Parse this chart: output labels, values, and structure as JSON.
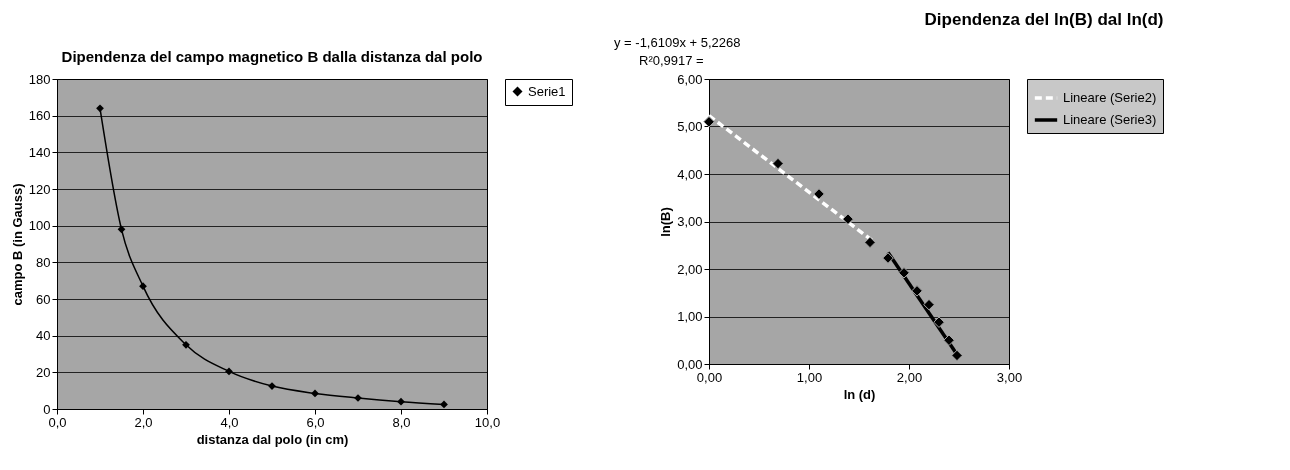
{
  "chart_data": [
    {
      "type": "line",
      "title": "Dipendenza del campo magnetico B dalla distanza dal polo",
      "xlabel": "distanza dal polo (in cm)",
      "ylabel": "campo B (in Gauss)",
      "x": [
        1,
        1.5,
        2,
        3,
        4,
        5,
        6,
        7,
        8,
        9
      ],
      "series": [
        {
          "name": "Serie1",
          "color": "#000000",
          "values": [
            164,
            98,
            67,
            35,
            20.5,
            12.5,
            8.5,
            6,
            4,
            2.5
          ]
        }
      ],
      "xlim": [
        0,
        10
      ],
      "xticks": [
        {
          "value": 0,
          "label": "0,0"
        },
        {
          "value": 2,
          "label": "2,0"
        },
        {
          "value": 4,
          "label": "4,0"
        },
        {
          "value": 6,
          "label": "6,0"
        },
        {
          "value": 8,
          "label": "8,0"
        },
        {
          "value": 10,
          "label": "10,0"
        }
      ],
      "ylim": [
        0,
        180
      ],
      "yticks": [
        0,
        20,
        40,
        60,
        80,
        100,
        120,
        140,
        160,
        180
      ],
      "grid": "y",
      "legend": "right",
      "marker": "diamond"
    },
    {
      "type": "scatter",
      "title": "Dipendenza del ln(B) dal ln(d)",
      "xlabel": "ln (d)",
      "ylabel": "ln(B)",
      "annotations": [
        "y = -1,6109x + 5,2268",
        "R²0,9917 ="
      ],
      "series": [
        {
          "type": "scatter",
          "color": "#000000",
          "marker": "diamond",
          "x": [
            0,
            0.69,
            1.1,
            1.39,
            1.61,
            1.79,
            1.95,
            2.08,
            2.2,
            2.3,
            2.4,
            2.48
          ],
          "values": [
            5.1,
            4.22,
            3.58,
            3.05,
            2.56,
            2.23,
            1.92,
            1.54,
            1.25,
            0.88,
            0.5,
            0.18
          ]
        },
        {
          "type": "line",
          "name": "Lineare (Serie2)",
          "color": "#ffffff",
          "line_style": "dashed",
          "x": [
            0,
            1.65
          ],
          "values": [
            5.23,
            2.57
          ]
        },
        {
          "type": "line",
          "name": "Lineare (Serie3)",
          "color": "#000000",
          "line_style": "solid",
          "x": [
            1.79,
            2.48
          ],
          "values": [
            2.35,
            0.2
          ]
        }
      ],
      "xlim": [
        0,
        3
      ],
      "xticks": [
        {
          "value": 0,
          "label": "0,00"
        },
        {
          "value": 1,
          "label": "1,00"
        },
        {
          "value": 2,
          "label": "2,00"
        },
        {
          "value": 3,
          "label": "3,00"
        }
      ],
      "ylim": [
        0,
        6
      ],
      "yticks": [
        {
          "value": 0,
          "label": "0,00"
        },
        {
          "value": 1,
          "label": "1,00"
        },
        {
          "value": 2,
          "label": "2,00"
        },
        {
          "value": 3,
          "label": "3,00"
        },
        {
          "value": 4,
          "label": "4,00"
        },
        {
          "value": 5,
          "label": "5,00"
        },
        {
          "value": 6,
          "label": "6,00"
        }
      ],
      "grid": "y",
      "legend": "right"
    }
  ]
}
